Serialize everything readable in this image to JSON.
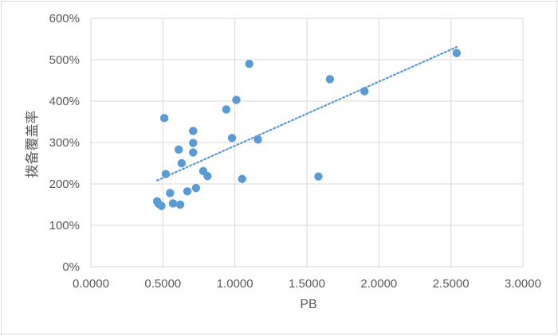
{
  "chart_data": {
    "type": "scatter",
    "title": "",
    "xlabel": "PB",
    "ylabel": "拨备覆盖率",
    "xlim": [
      0,
      3
    ],
    "ylim": [
      0,
      600
    ],
    "x_ticks": [
      "0.0000",
      "0.5000",
      "1.0000",
      "1.5000",
      "2.0000",
      "2.5000",
      "3.0000"
    ],
    "y_ticks": [
      "0%",
      "100%",
      "200%",
      "300%",
      "400%",
      "500%",
      "600%"
    ],
    "grid": "vertical and horizontal major gridlines",
    "legend": "none",
    "marker_color": "#5b9bd5",
    "trendline": {
      "type": "linear",
      "style": "dotted",
      "color": "#5b9bd5"
    },
    "points": [
      {
        "x": 0.46,
        "y": 158
      },
      {
        "x": 0.47,
        "y": 152
      },
      {
        "x": 0.49,
        "y": 147
      },
      {
        "x": 0.51,
        "y": 359
      },
      {
        "x": 0.52,
        "y": 224
      },
      {
        "x": 0.55,
        "y": 178
      },
      {
        "x": 0.57,
        "y": 153
      },
      {
        "x": 0.61,
        "y": 283
      },
      {
        "x": 0.62,
        "y": 150
      },
      {
        "x": 0.63,
        "y": 250
      },
      {
        "x": 0.67,
        "y": 182
      },
      {
        "x": 0.71,
        "y": 328
      },
      {
        "x": 0.71,
        "y": 299
      },
      {
        "x": 0.71,
        "y": 276
      },
      {
        "x": 0.73,
        "y": 190
      },
      {
        "x": 0.78,
        "y": 231
      },
      {
        "x": 0.81,
        "y": 219
      },
      {
        "x": 0.94,
        "y": 380
      },
      {
        "x": 0.98,
        "y": 311
      },
      {
        "x": 1.01,
        "y": 403
      },
      {
        "x": 1.05,
        "y": 212
      },
      {
        "x": 1.1,
        "y": 490
      },
      {
        "x": 1.16,
        "y": 307
      },
      {
        "x": 1.58,
        "y": 218
      },
      {
        "x": 1.66,
        "y": 453
      },
      {
        "x": 1.9,
        "y": 424
      },
      {
        "x": 2.54,
        "y": 516
      }
    ]
  }
}
